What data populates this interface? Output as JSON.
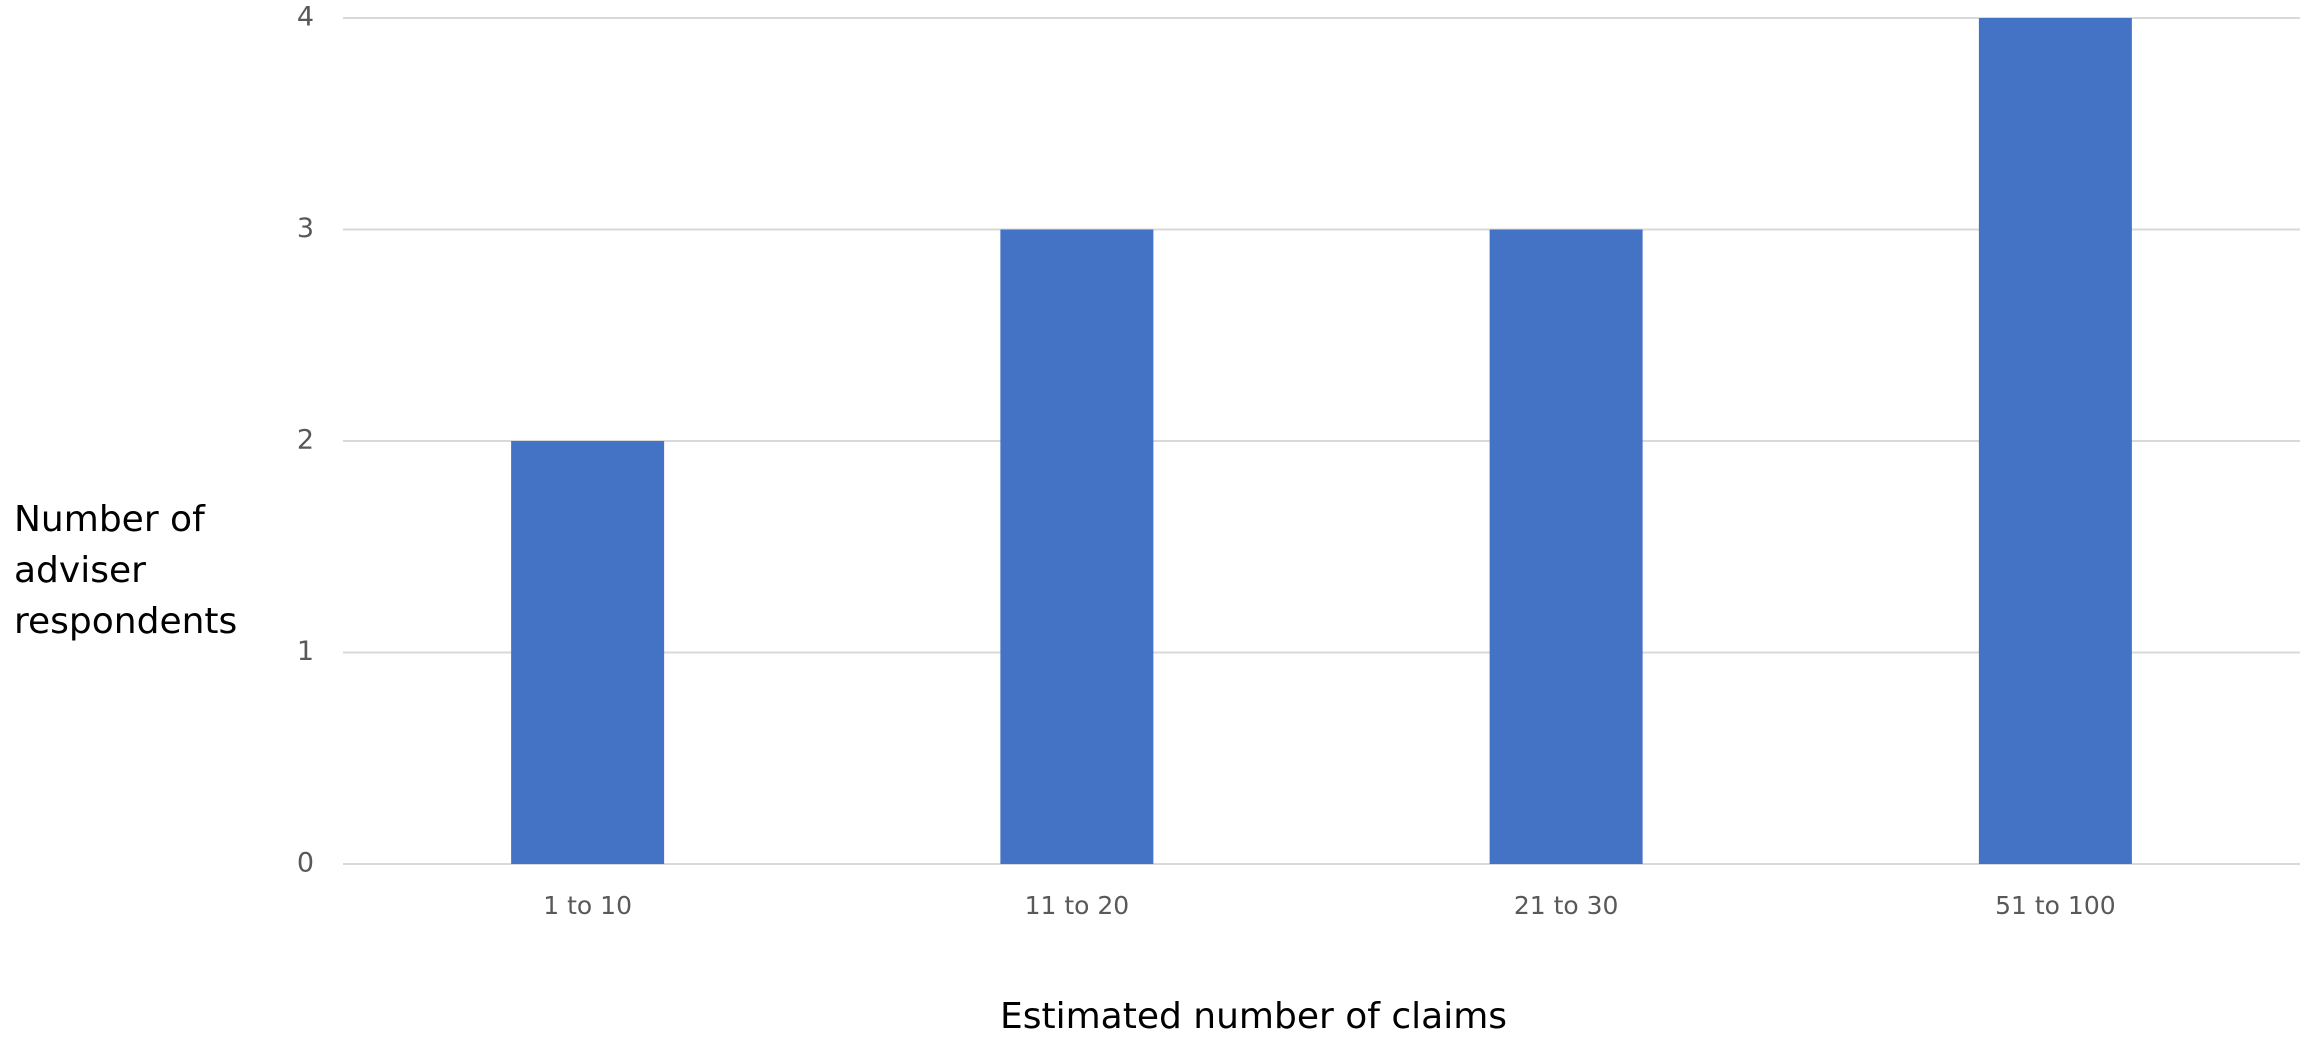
{
  "chart_data": {
    "type": "bar",
    "title": "",
    "categories": [
      "1 to 10",
      "11 to 20",
      "21 to 30",
      "51 to 100"
    ],
    "values": [
      2,
      3,
      3,
      4
    ],
    "xlabel": "Estimated number of claims",
    "ylabel": "Number of\nadviser\nrespondents",
    "ylim": [
      0,
      4
    ],
    "yticks": [
      "0",
      "1",
      "2",
      "3",
      "4"
    ],
    "grid": true,
    "legend": "none",
    "bar_color": "#4472C4",
    "grid_color": "#D9D9D9",
    "tick_color": "#595959"
  }
}
